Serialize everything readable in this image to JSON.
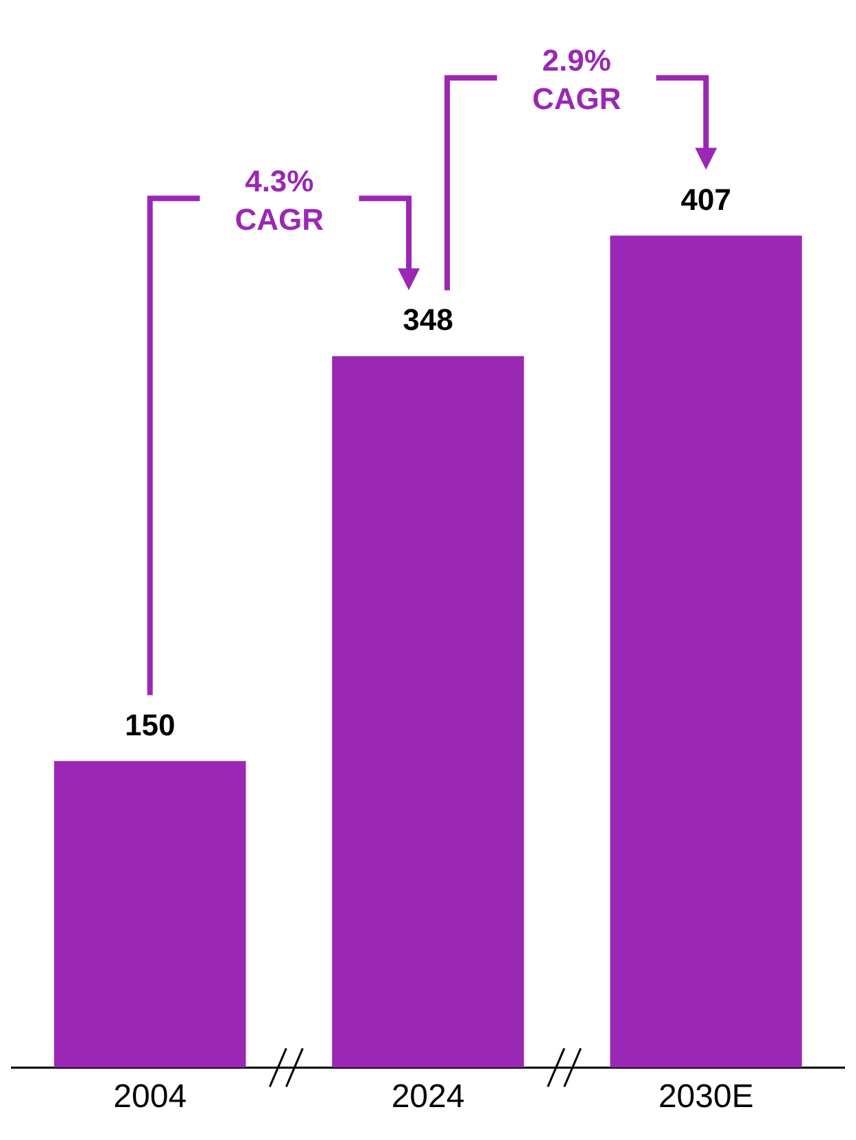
{
  "chart_data": {
    "type": "bar",
    "categories": [
      "2004",
      "2024",
      "2030E"
    ],
    "values": [
      150,
      348,
      407
    ],
    "color": "#9b27b5",
    "data_labels": true,
    "grid": false,
    "legend": false,
    "annotations": [
      "4.3%\nCAGR",
      "2.9%\nCAGR"
    ]
  }
}
